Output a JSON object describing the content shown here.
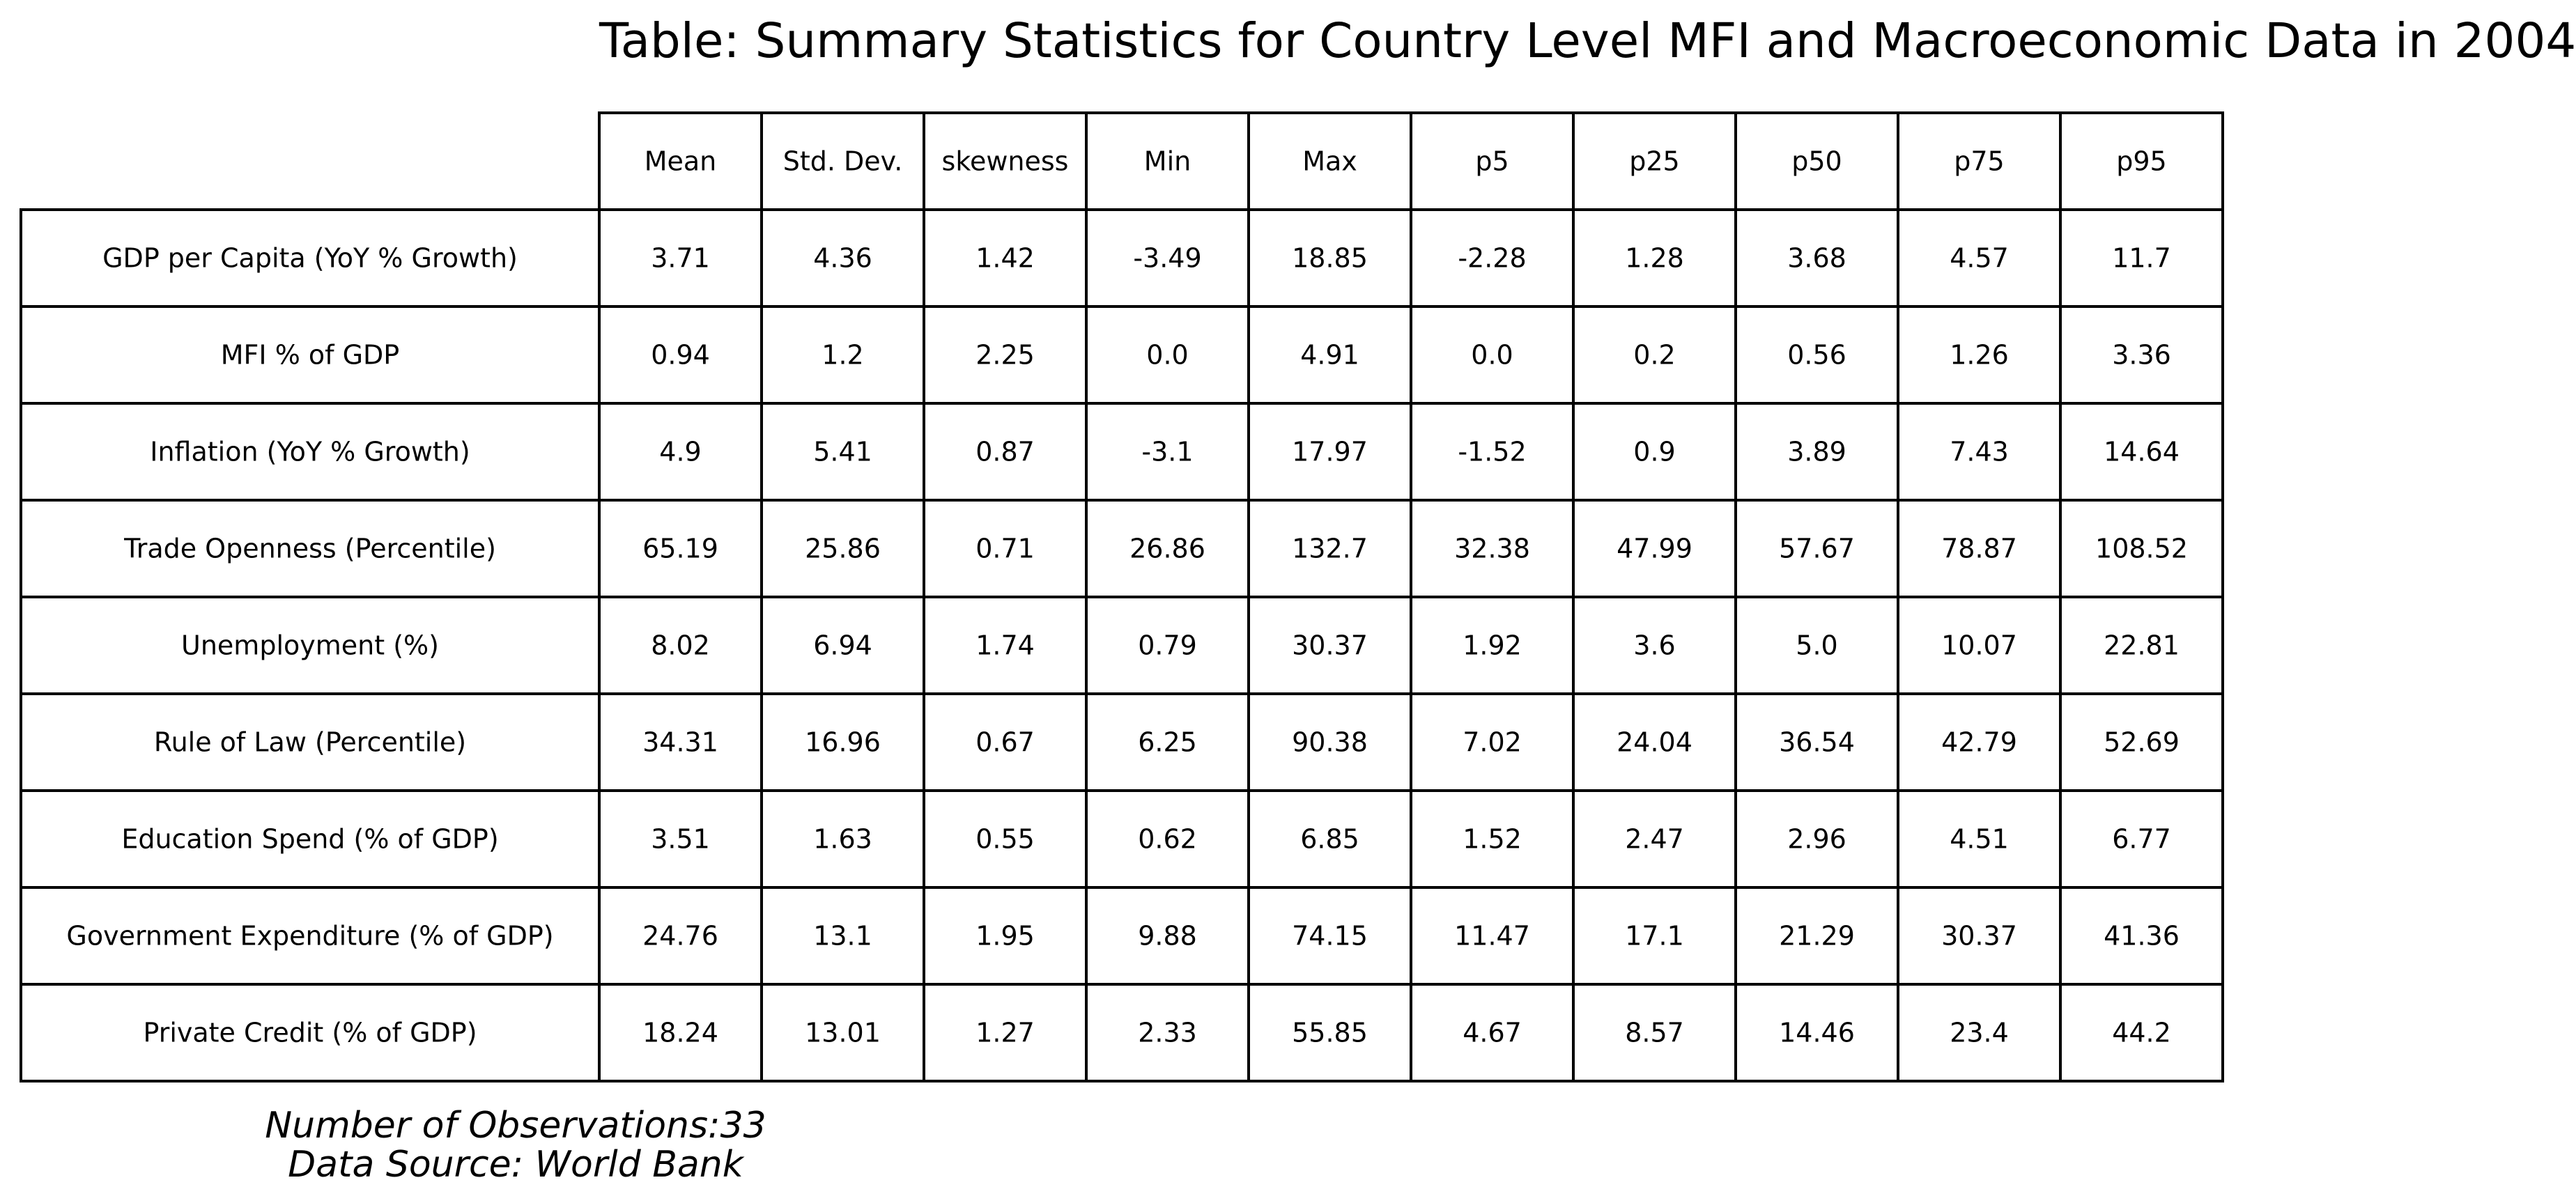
{
  "chart_data": {
    "type": "table",
    "title": "Table: Summary Statistics for Country Level MFI and Macroeconomic Data in 2004",
    "columns": [
      "Mean",
      "Std. Dev.",
      "skewness",
      "Min",
      "Max",
      "p5",
      "p25",
      "p50",
      "p75",
      "p95"
    ],
    "rows": [
      {
        "label": "GDP per Capita (YoY % Growth)",
        "values": [
          "3.71",
          "4.36",
          "1.42",
          "-3.49",
          "18.85",
          "-2.28",
          "1.28",
          "3.68",
          "4.57",
          "11.7"
        ]
      },
      {
        "label": "MFI % of GDP",
        "values": [
          "0.94",
          "1.2",
          "2.25",
          "0.0",
          "4.91",
          "0.0",
          "0.2",
          "0.56",
          "1.26",
          "3.36"
        ]
      },
      {
        "label": "Inflation (YoY % Growth)",
        "values": [
          "4.9",
          "5.41",
          "0.87",
          "-3.1",
          "17.97",
          "-1.52",
          "0.9",
          "3.89",
          "7.43",
          "14.64"
        ]
      },
      {
        "label": "Trade Openness (Percentile)",
        "values": [
          "65.19",
          "25.86",
          "0.71",
          "26.86",
          "132.7",
          "32.38",
          "47.99",
          "57.67",
          "78.87",
          "108.52"
        ]
      },
      {
        "label": "Unemployment (%)",
        "values": [
          "8.02",
          "6.94",
          "1.74",
          "0.79",
          "30.37",
          "1.92",
          "3.6",
          "5.0",
          "10.07",
          "22.81"
        ]
      },
      {
        "label": "Rule of Law (Percentile)",
        "values": [
          "34.31",
          "16.96",
          "0.67",
          "6.25",
          "90.38",
          "7.02",
          "24.04",
          "36.54",
          "42.79",
          "52.69"
        ]
      },
      {
        "label": "Education Spend (% of GDP)",
        "values": [
          "3.51",
          "1.63",
          "0.55",
          "0.62",
          "6.85",
          "1.52",
          "2.47",
          "2.96",
          "4.51",
          "6.77"
        ]
      },
      {
        "label": "Government Expenditure (% of GDP)",
        "values": [
          "24.76",
          "13.1",
          "1.95",
          "9.88",
          "74.15",
          "11.47",
          "17.1",
          "21.29",
          "30.37",
          "41.36"
        ]
      },
      {
        "label": "Private Credit (% of GDP)",
        "values": [
          "18.24",
          "13.01",
          "1.27",
          "2.33",
          "55.85",
          "4.67",
          "8.57",
          "14.46",
          "23.4",
          "44.2"
        ]
      }
    ],
    "notes": [
      "Number of Observations:33",
      "Data Source: World Bank"
    ]
  }
}
